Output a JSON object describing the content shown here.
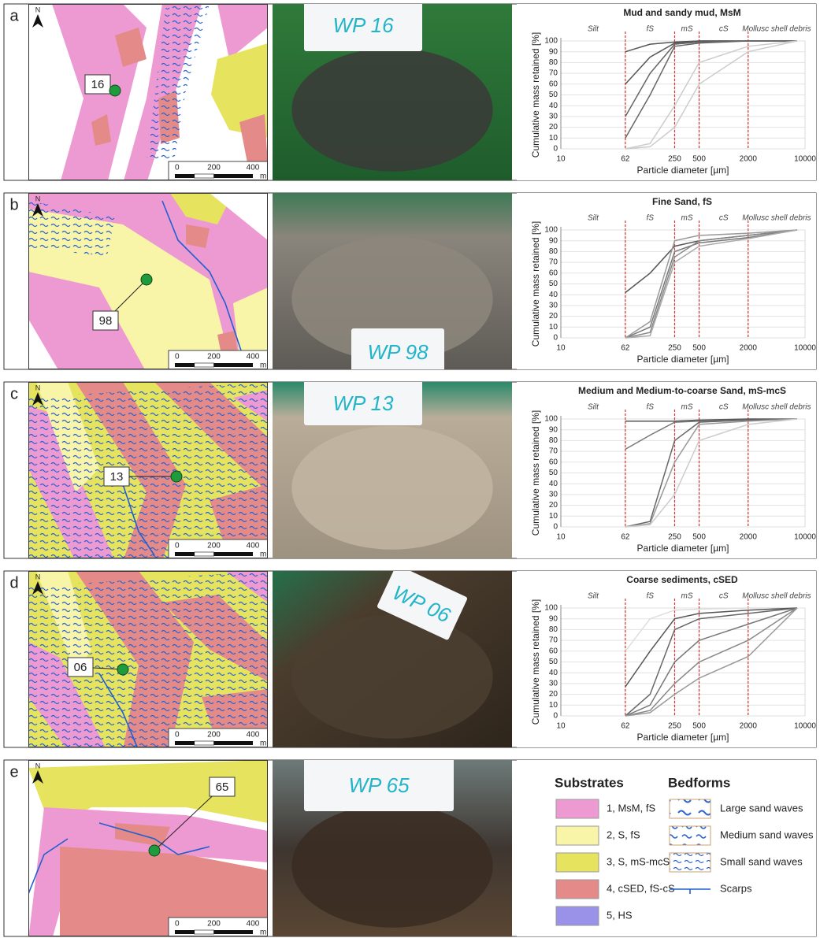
{
  "panels": [
    {
      "label": "a",
      "north": "N",
      "site": "16",
      "scale_ticks": [
        0,
        200,
        400
      ],
      "scale_unit": "m",
      "photo_tag": "WP 16",
      "chart_data": {
        "type": "line",
        "title": "Mud and sandy mud, MsM",
        "y_label": "Cumulative mass retained [%]",
        "x_label": "Particle diameter [µm]",
        "fractions": [
          "Silt",
          "fS",
          "mS",
          "cS",
          "Mollusc shell debris"
        ],
        "fraction_boundaries": [
          62,
          250,
          500,
          2000
        ],
        "boundary_color": "#e03030",
        "x": [
          62,
          125,
          250,
          500,
          2000,
          8000
        ],
        "series": [
          {
            "color": "#555555",
            "values": [
              90,
              97,
              99,
              100,
              100,
              100
            ]
          },
          {
            "color": "#555555",
            "values": [
              60,
              85,
              98,
              100,
              100,
              100
            ]
          },
          {
            "color": "#666666",
            "values": [
              30,
              70,
              97,
              99,
              100,
              100
            ]
          },
          {
            "color": "#666666",
            "values": [
              10,
              50,
              95,
              98,
              100,
              100
            ]
          },
          {
            "color": "#cccccc",
            "values": [
              0,
              5,
              40,
              80,
              95,
              100
            ]
          },
          {
            "color": "#cccccc",
            "values": [
              0,
              2,
              20,
              60,
              90,
              100
            ]
          }
        ],
        "xscale": "log",
        "xlim": [
          10,
          10000
        ],
        "xticks": [
          10,
          62,
          250,
          500,
          2000,
          10000
        ],
        "ylim": [
          0,
          100
        ],
        "yticks": [
          0,
          10,
          20,
          30,
          40,
          50,
          60,
          70,
          80,
          90,
          100
        ],
        "grid": true
      }
    },
    {
      "label": "b",
      "north": "N",
      "site": "98",
      "scale_ticks": [
        0,
        200,
        400
      ],
      "scale_unit": "m",
      "photo_tag": "WP 98",
      "chart_data": {
        "type": "line",
        "title": "Fine Sand, fS",
        "y_label": "Cumulative mass retained [%]",
        "x_label": "Particle diameter [µm]",
        "fractions": [
          "Silt",
          "fS",
          "mS",
          "cS",
          "Mollusc shell debris"
        ],
        "fraction_boundaries": [
          62,
          250,
          500,
          2000
        ],
        "boundary_color": "#e03030",
        "x": [
          62,
          125,
          250,
          500,
          2000,
          8000
        ],
        "series": [
          {
            "color": "#555555",
            "values": [
              42,
              60,
              85,
              90,
              95,
              100
            ]
          },
          {
            "color": "#777777",
            "values": [
              0,
              10,
              80,
              88,
              93,
              100
            ]
          },
          {
            "color": "#888888",
            "values": [
              0,
              5,
              75,
              90,
              95,
              100
            ]
          },
          {
            "color": "#999999",
            "values": [
              0,
              15,
              90,
              95,
              97,
              100
            ]
          },
          {
            "color": "#aaaaaa",
            "values": [
              0,
              2,
              70,
              85,
              92,
              100
            ]
          }
        ],
        "xscale": "log",
        "xlim": [
          10,
          10000
        ],
        "xticks": [
          10,
          62,
          250,
          500,
          2000,
          10000
        ],
        "ylim": [
          0,
          100
        ],
        "yticks": [
          0,
          10,
          20,
          30,
          40,
          50,
          60,
          70,
          80,
          90,
          100
        ],
        "grid": true
      }
    },
    {
      "label": "c",
      "north": "N",
      "site": "13",
      "scale_ticks": [
        0,
        200,
        400
      ],
      "scale_unit": "m",
      "photo_tag": "WP 13",
      "chart_data": {
        "type": "line",
        "title": "Medium and Medium-to-coarse Sand, mS-mcS",
        "y_label": "Cumulative mass retained [%]",
        "x_label": "Particle diameter [µm]",
        "fractions": [
          "Silt",
          "fS",
          "mS",
          "cS",
          "Mollusc shell debris"
        ],
        "fraction_boundaries": [
          62,
          250,
          500,
          2000
        ],
        "boundary_color": "#e03030",
        "x": [
          62,
          125,
          250,
          500,
          2000,
          8000
        ],
        "series": [
          {
            "color": "#555555",
            "values": [
              98,
              98,
              98,
              99,
              100,
              100
            ]
          },
          {
            "color": "#777777",
            "values": [
              72,
              85,
              97,
              98,
              99,
              100
            ]
          },
          {
            "color": "#666666",
            "values": [
              0,
              5,
              80,
              97,
              99,
              100
            ]
          },
          {
            "color": "#999999",
            "values": [
              0,
              3,
              60,
              95,
              98,
              100
            ]
          },
          {
            "color": "#cccccc",
            "values": [
              0,
              2,
              30,
              80,
              95,
              100
            ]
          }
        ],
        "xscale": "log",
        "xlim": [
          10,
          10000
        ],
        "xticks": [
          10,
          62,
          250,
          500,
          2000,
          10000
        ],
        "ylim": [
          0,
          100
        ],
        "yticks": [
          0,
          10,
          20,
          30,
          40,
          50,
          60,
          70,
          80,
          90,
          100
        ],
        "grid": true
      }
    },
    {
      "label": "d",
      "north": "N",
      "site": "06",
      "scale_ticks": [
        0,
        200,
        400
      ],
      "scale_unit": "m",
      "photo_tag": "WP 06",
      "chart_data": {
        "type": "line",
        "title": "Coarse sediments, cSED",
        "y_label": "Cumulative mass retained [%]",
        "x_label": "Particle diameter [µm]",
        "fractions": [
          "Silt",
          "fS",
          "mS",
          "cS",
          "Mollusc shell debris"
        ],
        "fraction_boundaries": [
          62,
          250,
          500,
          2000
        ],
        "boundary_color": "#e03030",
        "x": [
          62,
          125,
          250,
          500,
          2000,
          8000
        ],
        "series": [
          {
            "color": "#dddddd",
            "values": [
              60,
              90,
              98,
              99,
              100,
              100
            ]
          },
          {
            "color": "#555555",
            "values": [
              27,
              60,
              90,
              95,
              98,
              100
            ]
          },
          {
            "color": "#666666",
            "values": [
              0,
              20,
              80,
              90,
              95,
              100
            ]
          },
          {
            "color": "#777777",
            "values": [
              0,
              10,
              50,
              70,
              85,
              100
            ]
          },
          {
            "color": "#888888",
            "values": [
              0,
              5,
              30,
              50,
              70,
              100
            ]
          },
          {
            "color": "#999999",
            "values": [
              0,
              3,
              20,
              35,
              55,
              100
            ]
          }
        ],
        "xscale": "log",
        "xlim": [
          10,
          10000
        ],
        "xticks": [
          10,
          62,
          250,
          500,
          2000,
          10000
        ],
        "ylim": [
          0,
          100
        ],
        "yticks": [
          0,
          10,
          20,
          30,
          40,
          50,
          60,
          70,
          80,
          90,
          100
        ],
        "grid": true
      }
    },
    {
      "label": "e",
      "north": "N",
      "site": "65",
      "scale_ticks": [
        0,
        200,
        400
      ],
      "scale_unit": "m",
      "photo_tag": "WP 65"
    }
  ],
  "legend": {
    "substrates_title": "Substrates",
    "substrates": [
      {
        "label": "1, MsM, fS",
        "color": "#ee9ad2"
      },
      {
        "label": "2, S, fS",
        "color": "#f8f4a8"
      },
      {
        "label": "3, S, mS-mcS",
        "color": "#e6e45e"
      },
      {
        "label": "4, cSED, fS-cS",
        "color": "#e48a88"
      },
      {
        "label": "5, HS",
        "color": "#9a92e8"
      }
    ],
    "bedforms_title": "Bedforms",
    "bedforms": [
      "Large sand waves",
      "Medium sand waves",
      "Small sand waves",
      "Scarps"
    ]
  }
}
